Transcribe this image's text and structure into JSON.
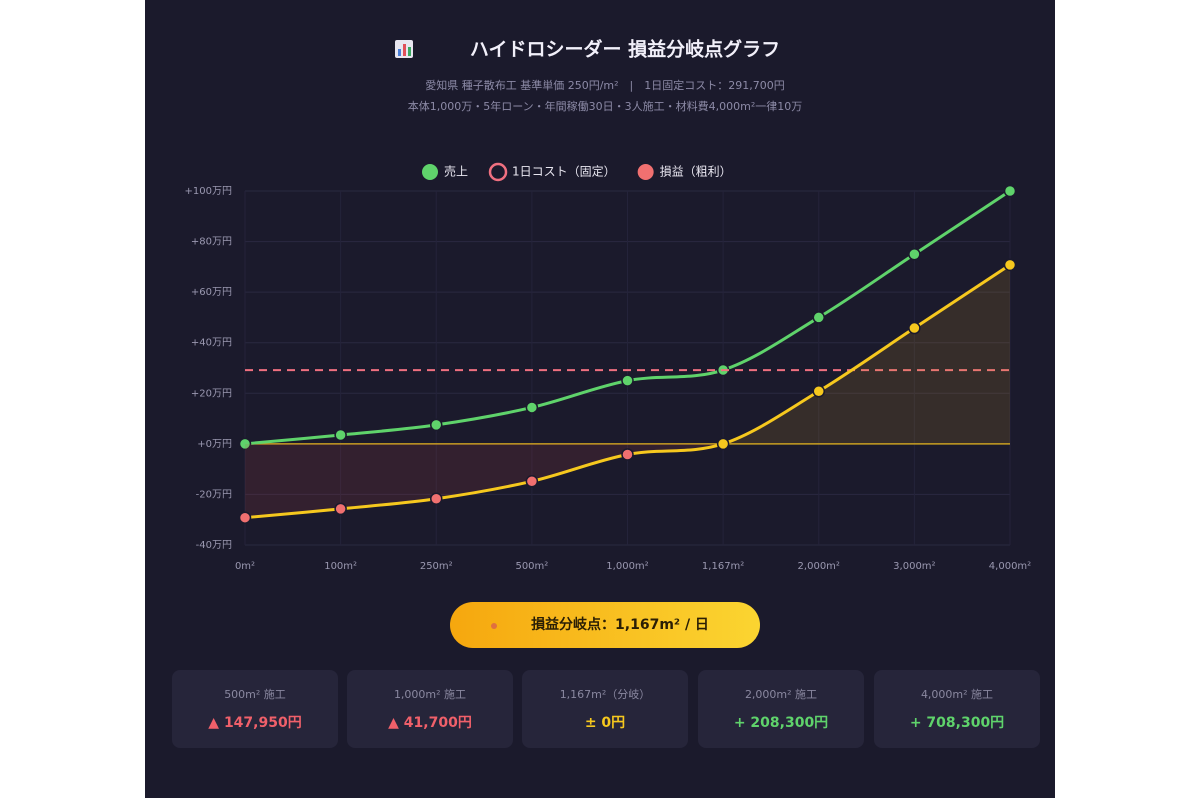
{
  "chart_data": {
    "type": "line",
    "title": "ハイドロシーダー 損益分岐点グラフ",
    "subtitle": [
      "愛知県 種子散布工 基準単価 250円/m²　|　1日固定コスト：291,700円",
      "本体1,000万・5年ローン・年間稼働30日・3人施工・材料費4,000m²一律10万"
    ],
    "categories": [
      "0m²",
      "100m²",
      "250m²",
      "500m²",
      "1,000m²",
      "1,167m²",
      "2,000m²",
      "3,000m²",
      "4,000m²"
    ],
    "series": [
      {
        "name": "売上",
        "color": "#5fd36b",
        "marker": "filled",
        "values": [
          0,
          3.5,
          7.5,
          14.4,
          25,
          29.2,
          50,
          75,
          100
        ]
      },
      {
        "name": "1日コスト（固定）",
        "color": "#f07080",
        "marker": "hollow",
        "dashed": true,
        "values": [
          29.17,
          29.17,
          29.17,
          29.17,
          29.17,
          29.17,
          29.17,
          29.17,
          29.17
        ]
      },
      {
        "name": "損益（粗利）",
        "color": "#f6c81e",
        "marker": "filled",
        "legend_color": "#f07070",
        "point_colors": [
          "#f07070",
          "#f07070",
          "#f07070",
          "#f07070",
          "#f07070",
          "#f6c81e",
          "#f6c81e",
          "#f6c81e",
          "#f6c81e"
        ],
        "values": [
          -29.2,
          -25.7,
          -21.7,
          -14.8,
          -4.2,
          0,
          20.8,
          45.8,
          70.8
        ]
      }
    ],
    "ylim": [
      -40,
      100
    ],
    "yticks": [
      {
        "value": -40,
        "label": "-40万円"
      },
      {
        "value": -20,
        "label": "-20万円"
      },
      {
        "value": 0,
        "label": "+0万円"
      },
      {
        "value": 20,
        "label": "+20万円"
      },
      {
        "value": 40,
        "label": "+40万円"
      },
      {
        "value": 60,
        "label": "+60万円"
      },
      {
        "value": 80,
        "label": "+80万円"
      },
      {
        "value": 100,
        "label": "+100万円"
      }
    ],
    "grid": true,
    "legend": "top",
    "annotation": "損益分岐点：1,167m² / 日"
  },
  "summary_cards": [
    {
      "label": "500m² 施工",
      "value": "▲ 147,950円",
      "tone": "loss"
    },
    {
      "label": "1,000m² 施工",
      "value": "▲ 41,700円",
      "tone": "loss"
    },
    {
      "label": "1,167m²（分岐）",
      "value": "± 0円",
      "tone": "even"
    },
    {
      "label": "2,000m² 施工",
      "value": "+ 208,300円",
      "tone": "gain"
    },
    {
      "label": "4,000m² 施工",
      "value": "+ 708,300円",
      "tone": "gain"
    }
  ]
}
